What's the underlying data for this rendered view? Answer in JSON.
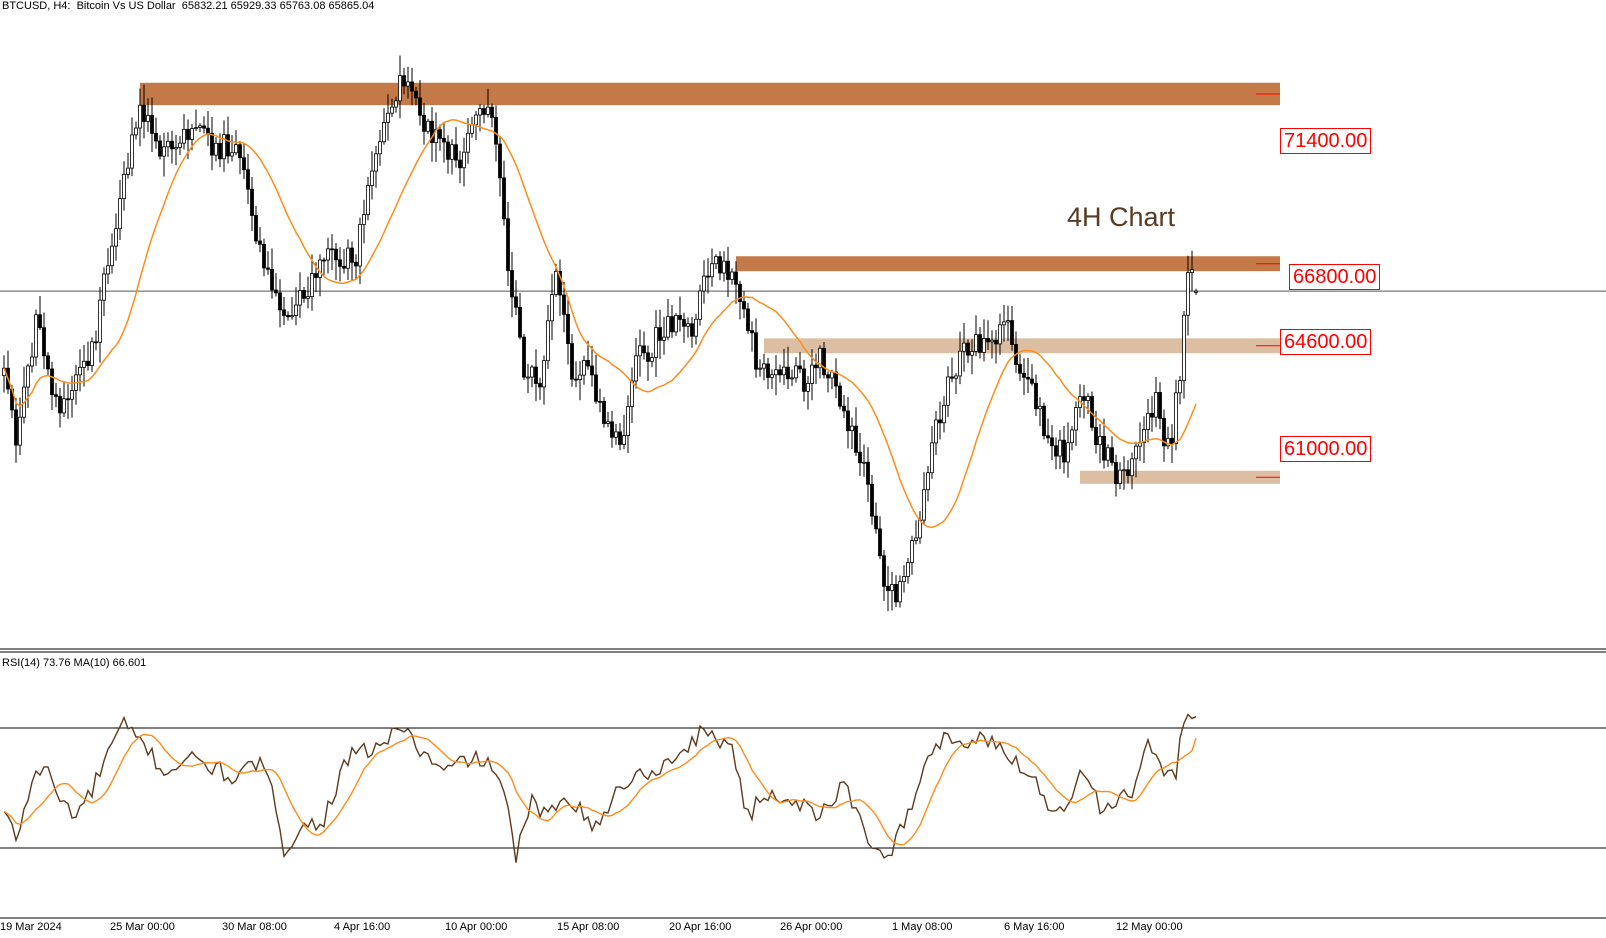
{
  "header": {
    "main": "BTCUSD, H4:  Bitcoin Vs US Dollar  65832.21 65929.33 65763.08 65865.04",
    "rsi": "RSI(14) 73.76 MA(10) 66.601"
  },
  "annotation": "4H Chart",
  "colors": {
    "candle": "#000000",
    "ma": "#ff8c1a",
    "rsi": "#5c3a1e",
    "zone_dark": "#c47a48",
    "zone_light": "#dcbfa3",
    "tag_text": "#ff0000",
    "current_line": "#555555"
  },
  "chart_data": [
    {
      "type": "candlestick",
      "symbol": "BTCUSD",
      "timeframe": "H4",
      "x_tick_labels": [
        "19 Mar 2024",
        "25 Mar 00:00",
        "30 Mar 08:00",
        "4 Apr 16:00",
        "10 Apr 00:00",
        "15 Apr 08:00",
        "20 Apr 16:00",
        "26 Apr 00:00",
        "1 May 08:00",
        "6 May 16:00",
        "12 May 00:00"
      ],
      "ylim": [
        56300,
        73400
      ],
      "last": {
        "open": 65832.21,
        "high": 65929.33,
        "low": 65763.08,
        "close": 65865.04
      },
      "current_price": 65865.04,
      "overlay": "moving average (orange)",
      "close_anchors": [
        [
          0,
          63800
        ],
        [
          3,
          62000
        ],
        [
          8,
          65000
        ],
        [
          14,
          62600
        ],
        [
          22,
          64200
        ],
        [
          30,
          69000
        ],
        [
          34,
          70800
        ],
        [
          40,
          69600
        ],
        [
          48,
          70400
        ],
        [
          52,
          69700
        ],
        [
          58,
          69800
        ],
        [
          64,
          67000
        ],
        [
          70,
          65200
        ],
        [
          76,
          66000
        ],
        [
          82,
          66800
        ],
        [
          88,
          66800
        ],
        [
          94,
          70000
        ],
        [
          99,
          71600
        ],
        [
          104,
          70600
        ],
        [
          109,
          69800
        ],
        [
          114,
          69300
        ],
        [
          118,
          70500
        ],
        [
          122,
          70800
        ],
        [
          126,
          66600
        ],
        [
          130,
          63900
        ],
        [
          134,
          63100
        ],
        [
          138,
          66400
        ],
        [
          142,
          63500
        ],
        [
          146,
          63900
        ],
        [
          150,
          62200
        ],
        [
          154,
          61700
        ],
        [
          158,
          64000
        ],
        [
          162,
          64400
        ],
        [
          166,
          65000
        ],
        [
          172,
          65000
        ],
        [
          176,
          66500
        ],
        [
          180,
          66700
        ],
        [
          184,
          65400
        ],
        [
          188,
          64100
        ],
        [
          192,
          63800
        ],
        [
          196,
          63700
        ],
        [
          200,
          63400
        ],
        [
          204,
          64000
        ],
        [
          208,
          63200
        ],
        [
          212,
          62100
        ],
        [
          216,
          60600
        ],
        [
          220,
          58000
        ],
        [
          224,
          57800
        ],
        [
          228,
          59300
        ],
        [
          232,
          62000
        ],
        [
          236,
          63300
        ],
        [
          240,
          64200
        ],
        [
          244,
          64400
        ],
        [
          248,
          64500
        ],
        [
          251,
          64900
        ],
        [
          254,
          63500
        ],
        [
          258,
          63000
        ],
        [
          262,
          61500
        ],
        [
          266,
          61600
        ],
        [
          270,
          63200
        ],
        [
          274,
          61700
        ],
        [
          278,
          61000
        ],
        [
          282,
          61200
        ],
        [
          286,
          62600
        ],
        [
          288,
          62800
        ],
        [
          290,
          61500
        ],
        [
          292,
          61900
        ],
        [
          294,
          63800
        ],
        [
          296,
          66400
        ],
        [
          298,
          66600
        ]
      ],
      "zones": [
        {
          "label": "71400.00",
          "low": 70850,
          "high": 71450,
          "from_bar": 34
        },
        {
          "label": "66800.00",
          "low": 66400,
          "high": 66800,
          "from_bar": 183
        },
        {
          "label": "64600.00",
          "low": 64200,
          "high": 64600,
          "from_bar": 190
        },
        {
          "label": "61000.00",
          "low": 60700,
          "high": 61050,
          "from_bar": 269
        }
      ]
    },
    {
      "type": "line",
      "name": "RSI(14) 73.76 MA(10) 66.601",
      "ylim": [
        10,
        90
      ],
      "levels": [
        70,
        30
      ],
      "rsi_anchors": [
        [
          0,
          42
        ],
        [
          3,
          33
        ],
        [
          7,
          52
        ],
        [
          10,
          58
        ],
        [
          14,
          46
        ],
        [
          18,
          41
        ],
        [
          22,
          49
        ],
        [
          26,
          62
        ],
        [
          30,
          71
        ],
        [
          32,
          68
        ],
        [
          36,
          63
        ],
        [
          40,
          55
        ],
        [
          46,
          60
        ],
        [
          52,
          57
        ],
        [
          58,
          53
        ],
        [
          64,
          59
        ],
        [
          68,
          44
        ],
        [
          70,
          30
        ],
        [
          74,
          36
        ],
        [
          80,
          40
        ],
        [
          86,
          60
        ],
        [
          92,
          63
        ],
        [
          96,
          66
        ],
        [
          100,
          71
        ],
        [
          104,
          62
        ],
        [
          110,
          55
        ],
        [
          116,
          60
        ],
        [
          122,
          58
        ],
        [
          126,
          42
        ],
        [
          128,
          28
        ],
        [
          132,
          45
        ],
        [
          136,
          40
        ],
        [
          140,
          48
        ],
        [
          144,
          44
        ],
        [
          148,
          36
        ],
        [
          154,
          51
        ],
        [
          160,
          55
        ],
        [
          166,
          58
        ],
        [
          170,
          63
        ],
        [
          174,
          68
        ],
        [
          178,
          67
        ],
        [
          182,
          64
        ],
        [
          186,
          40
        ],
        [
          190,
          48
        ],
        [
          196,
          47
        ],
        [
          202,
          42
        ],
        [
          206,
          42
        ],
        [
          210,
          52
        ],
        [
          214,
          40
        ],
        [
          218,
          28
        ],
        [
          222,
          30
        ],
        [
          228,
          47
        ],
        [
          232,
          63
        ],
        [
          236,
          68
        ],
        [
          240,
          64
        ],
        [
          244,
          67
        ],
        [
          250,
          62
        ],
        [
          254,
          58
        ],
        [
          258,
          52
        ],
        [
          262,
          42
        ],
        [
          266,
          46
        ],
        [
          270,
          57
        ],
        [
          274,
          43
        ],
        [
          278,
          46
        ],
        [
          282,
          48
        ],
        [
          286,
          64
        ],
        [
          290,
          53
        ],
        [
          293,
          56
        ],
        [
          295,
          73
        ],
        [
          297,
          76
        ],
        [
          298,
          74
        ]
      ]
    }
  ]
}
